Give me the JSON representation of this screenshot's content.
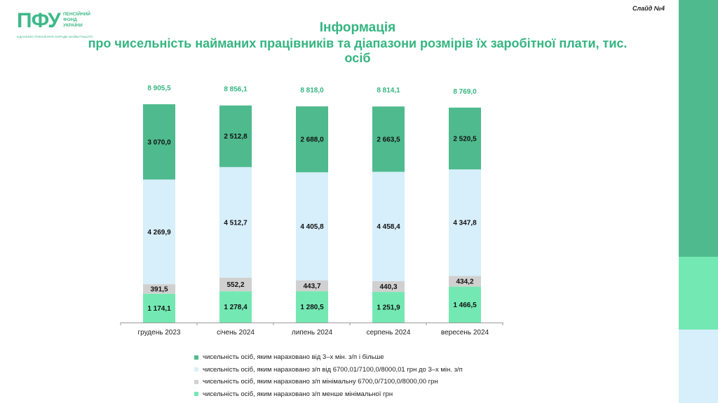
{
  "logo": {
    "mark": "ПФУ",
    "words": [
      "ПЕНСІЙНИЙ",
      "ФОНД",
      "УКРАЇНИ"
    ],
    "tagline": "ЄДНАЄМО ПОКОЛІННЯ ЗАРАДИ МАЙБУТНЬОГО"
  },
  "slide_label": "Слайд №4",
  "title_line1": "Інформація",
  "title_line2": "про чисельність найманих працівників та діапазони розмірів їх заробітної плати, тис. осіб",
  "colors": {
    "accent": "#35b581",
    "series_top": "#4fba8e",
    "series_mid": "#d6effa",
    "series_min": "#d0d0d0",
    "series_low": "#74e8b3"
  },
  "chart_data": {
    "type": "bar",
    "stacked": true,
    "categories": [
      "грудень 2023",
      "січень 2024",
      "липень 2024",
      "серпень 2024",
      "вересень 2024"
    ],
    "totals": [
      "8 905,5",
      "8 856,1",
      "8 818,0",
      "8 814,1",
      "8 769,0"
    ],
    "series": [
      {
        "name": "чисельність осіб, яким нараховано з/п менше мінімальної грн",
        "values": [
          1174.1,
          1278.4,
          1280.5,
          1251.9,
          1466.5
        ],
        "labels": [
          "1 174,1",
          "1 278,4",
          "1 280,5",
          "1 251,9",
          "1 466,5"
        ],
        "color": "#74e8b3"
      },
      {
        "name": "чисельність осіб, яким нараховано з/п  мінімальну 6700,0/7100,0/8000,00  грн",
        "values": [
          391.5,
          552.2,
          443.7,
          440.3,
          434.2
        ],
        "labels": [
          "391,5",
          "552,2",
          "443,7",
          "440,3",
          "434,2"
        ],
        "color": "#d0d0d0"
      },
      {
        "name": "чисельність осіб, яким нараховано з/п від 6700,01/7100,0/8000,01  грн до 3–х мін. з/п",
        "values": [
          4269.9,
          4512.7,
          4405.8,
          4458.4,
          4347.8
        ],
        "labels": [
          "4 269,9",
          "4 512,7",
          "4 405,8",
          "4 458,4",
          "4 347,8"
        ],
        "color": "#d6effa"
      },
      {
        "name": "чисельність осіб, яким нараховано від 3–х мін. з/п і більше",
        "values": [
          3070.0,
          2512.8,
          2688.0,
          2663.5,
          2520.5
        ],
        "labels": [
          "3 070,0",
          "2 512,8",
          "2 688,0",
          "2 663,5",
          "2 520,5"
        ],
        "color": "#4fba8e"
      }
    ],
    "legend_order": [
      3,
      2,
      1,
      0
    ],
    "legend_position": "bottom",
    "grid": false
  }
}
